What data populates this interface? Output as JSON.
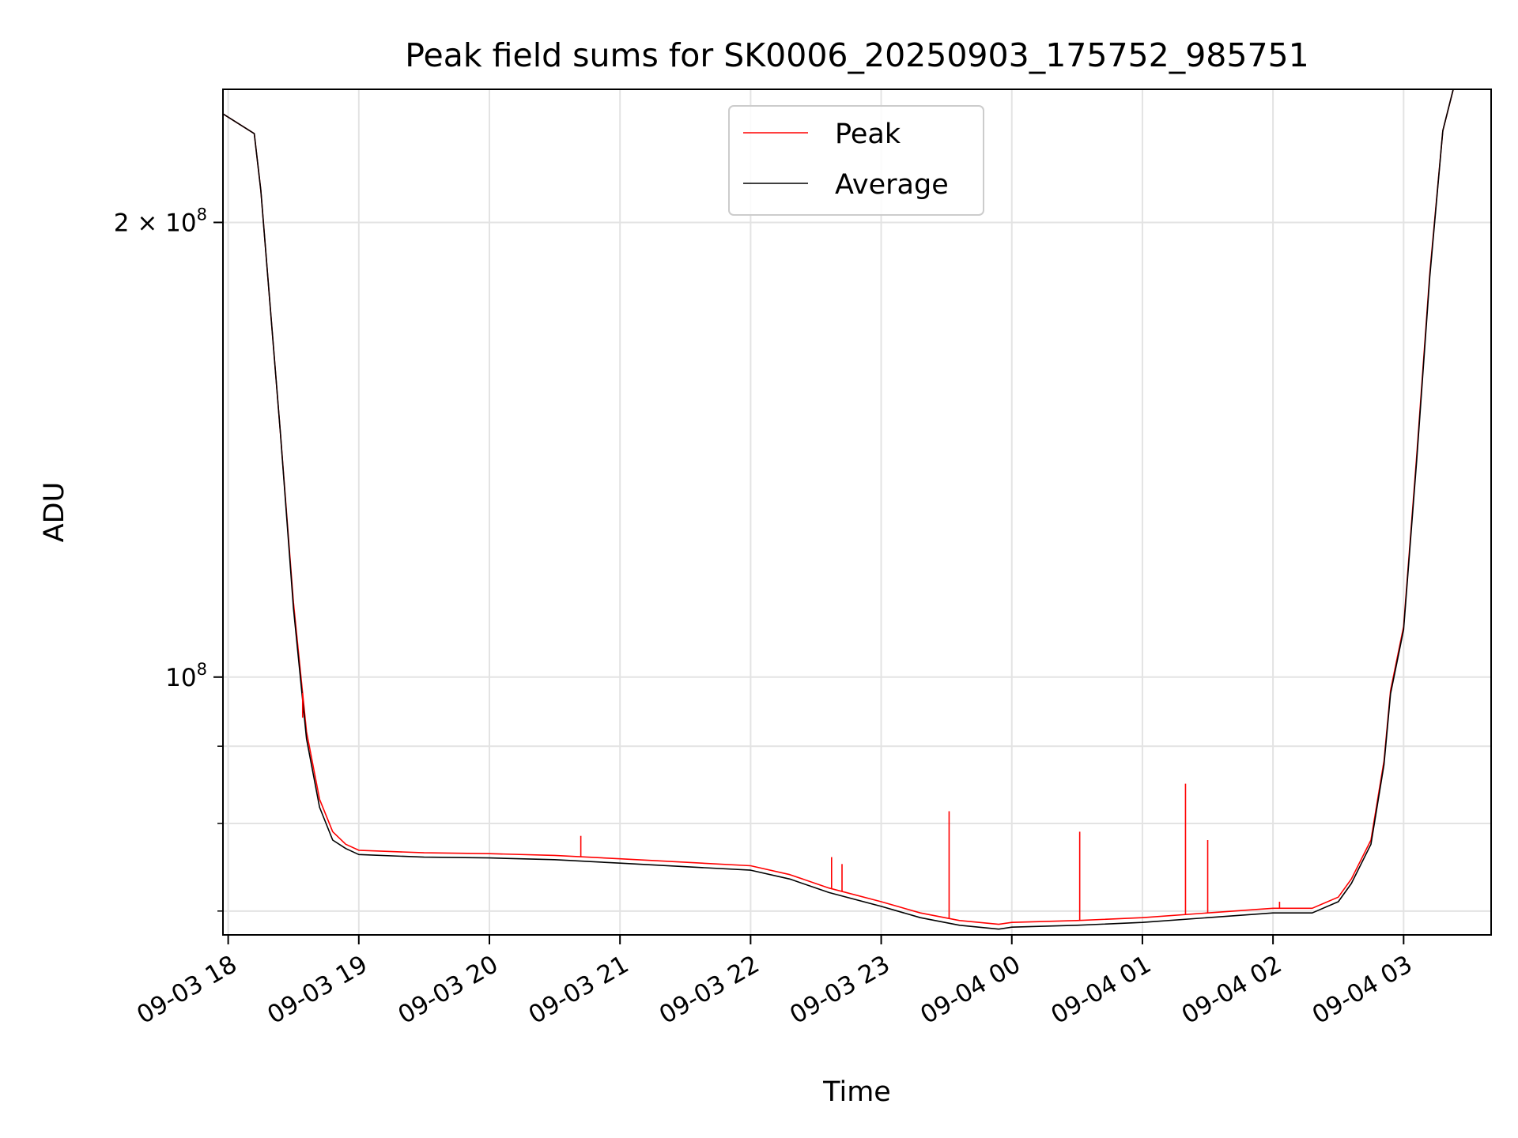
{
  "chart_data": {
    "type": "line",
    "title": "Peak field sums for SK0006_20250903_175752_985751",
    "xlabel": "Time",
    "ylabel": "ADU",
    "yscale": "log",
    "grid": true,
    "legend_position": "top-center",
    "x_unit": "hours since 2025-09-03 18:00",
    "xlim": [
      -0.04,
      9.67
    ],
    "ylim": [
      67500000,
      245000000
    ],
    "x_ticks": [
      {
        "value": 0,
        "label": "09-03 18"
      },
      {
        "value": 1,
        "label": "09-03 19"
      },
      {
        "value": 2,
        "label": "09-03 20"
      },
      {
        "value": 3,
        "label": "09-03 21"
      },
      {
        "value": 4,
        "label": "09-03 22"
      },
      {
        "value": 5,
        "label": "09-03 23"
      },
      {
        "value": 6,
        "label": "09-04 00"
      },
      {
        "value": 7,
        "label": "09-04 01"
      },
      {
        "value": 8,
        "label": "09-04 02"
      },
      {
        "value": 9,
        "label": "09-04 03"
      }
    ],
    "y_major_ticks": [
      {
        "value": 100000000,
        "base": "10",
        "exp": "8",
        "prefix": ""
      },
      {
        "value": 200000000,
        "base": "10",
        "exp": "8",
        "prefix": "2 × "
      }
    ],
    "y_minor_ticks": [
      70000000,
      80000000,
      90000000
    ],
    "series": [
      {
        "name": "Peak",
        "color": "#ff0000",
        "x": [
          -0.04,
          0.2,
          0.25,
          0.4,
          0.5,
          0.6,
          0.7,
          0.8,
          0.9,
          1.0,
          1.5,
          2.0,
          2.5,
          3.0,
          3.5,
          4.0,
          4.3,
          4.6,
          5.0,
          5.3,
          5.6,
          5.9,
          6.0,
          6.5,
          7.0,
          7.5,
          8.0,
          8.3,
          8.5,
          8.6,
          8.75,
          8.85,
          8.9,
          9.0,
          9.1,
          9.2,
          9.3,
          9.38,
          9.67
        ],
        "y": [
          236000000,
          229000000,
          210000000,
          145000000,
          112000000,
          92000000,
          83000000,
          79000000,
          77500000,
          76800000,
          76500000,
          76400000,
          76200000,
          75800000,
          75400000,
          75000000,
          74000000,
          72500000,
          71000000,
          69800000,
          69000000,
          68600000,
          68800000,
          69000000,
          69300000,
          69800000,
          70300000,
          70300000,
          71500000,
          73500000,
          78000000,
          88000000,
          98000000,
          108000000,
          140000000,
          185000000,
          230000000,
          245000000,
          245000000
        ]
      },
      {
        "name": "Average",
        "color": "#000000",
        "x": [
          -0.04,
          0.2,
          0.25,
          0.4,
          0.5,
          0.6,
          0.7,
          0.8,
          0.9,
          1.0,
          1.5,
          2.0,
          2.5,
          3.0,
          3.5,
          4.0,
          4.3,
          4.6,
          5.0,
          5.3,
          5.6,
          5.9,
          6.0,
          6.5,
          7.0,
          7.5,
          8.0,
          8.3,
          8.5,
          8.6,
          8.75,
          8.85,
          8.9,
          9.0,
          9.1,
          9.2,
          9.3,
          9.38,
          9.67
        ],
        "y": [
          236000000,
          229000000,
          210000000,
          145000000,
          111000000,
          91000000,
          82000000,
          78000000,
          77000000,
          76300000,
          76000000,
          75900000,
          75700000,
          75300000,
          74900000,
          74500000,
          73500000,
          72000000,
          70500000,
          69300000,
          68500000,
          68100000,
          68300000,
          68500000,
          68800000,
          69300000,
          69800000,
          69800000,
          71000000,
          73000000,
          77500000,
          87500000,
          97500000,
          107500000,
          139000000,
          184000000,
          230000000,
          245000000,
          245000000
        ]
      }
    ],
    "annotations": [
      {
        "series": "Peak",
        "x": 0.57,
        "y": 94000000
      },
      {
        "series": "Peak",
        "x": 2.7,
        "y": 78500000
      },
      {
        "series": "Peak",
        "x": 4.62,
        "y": 76000000
      },
      {
        "series": "Peak",
        "x": 4.7,
        "y": 75200000
      },
      {
        "series": "Peak",
        "x": 5.52,
        "y": 81500000
      },
      {
        "series": "Peak",
        "x": 6.52,
        "y": 79000000
      },
      {
        "series": "Peak",
        "x": 7.33,
        "y": 85000000
      },
      {
        "series": "Peak",
        "x": 7.5,
        "y": 78000000
      },
      {
        "series": "Peak",
        "x": 8.05,
        "y": 71000000
      }
    ]
  }
}
